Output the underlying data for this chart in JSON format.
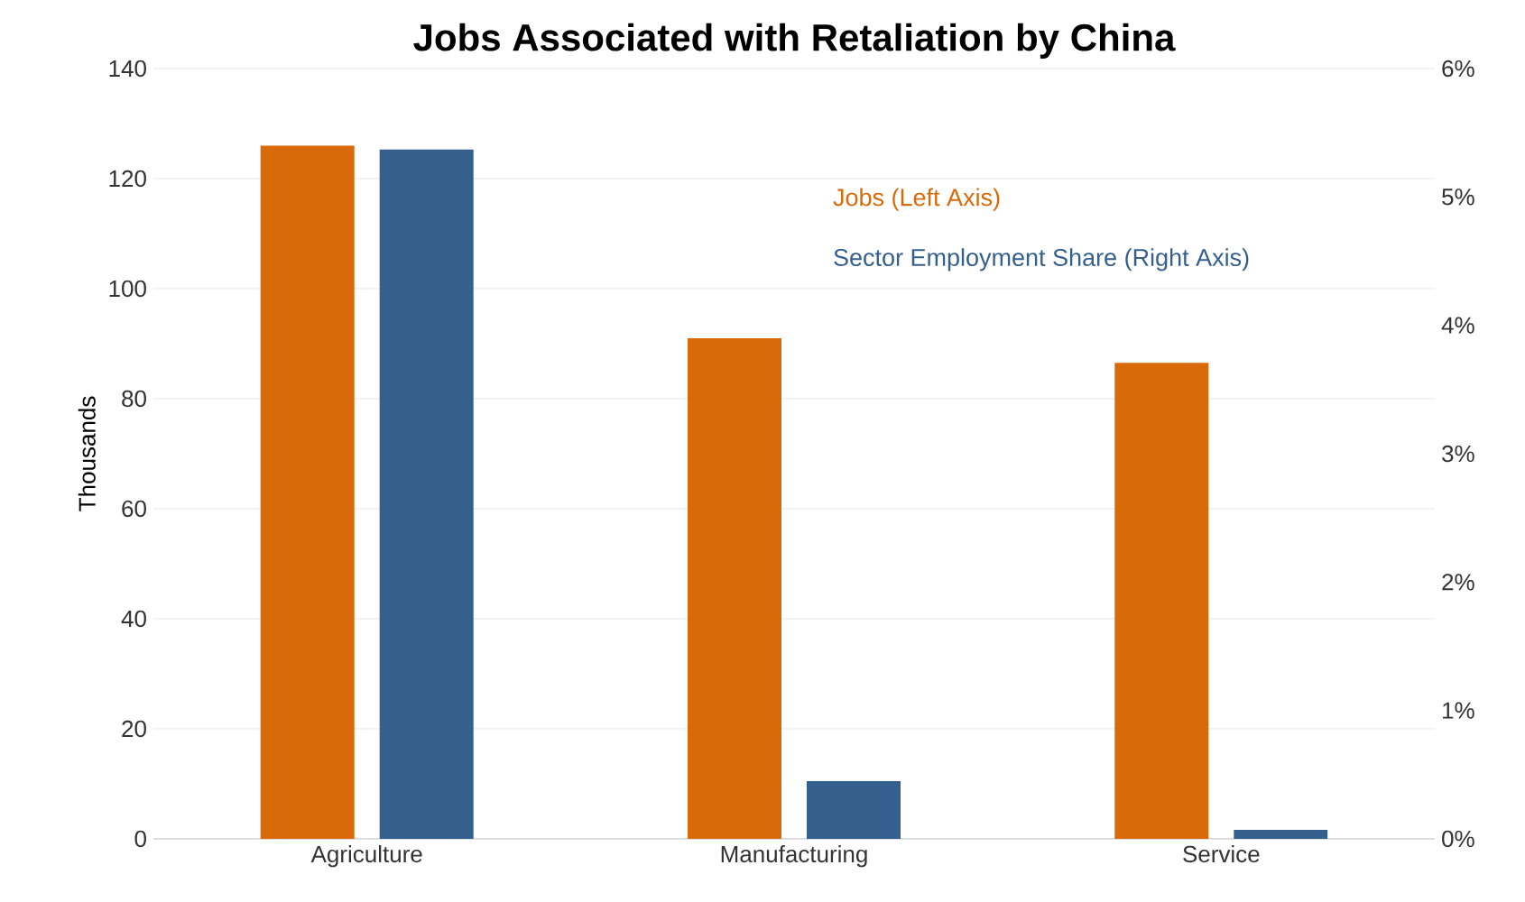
{
  "chart_data": {
    "type": "bar",
    "title": "Jobs Associated with Retaliation by China",
    "categories": [
      "Agriculture",
      "Manufacturing",
      "Service"
    ],
    "series": [
      {
        "name": "Jobs (Left Axis)",
        "color": "#d96a09",
        "values": [
          126,
          91,
          86.5
        ]
      },
      {
        "name": "Sector Employment Share (Right Axis)",
        "color": "#355f8d",
        "values": [
          5.37,
          0.45,
          0.07
        ],
        "axis": "y2"
      }
    ],
    "ylabel": "Thousands",
    "ylim": [
      0,
      140
    ],
    "yticks": [
      0,
      20,
      40,
      60,
      80,
      100,
      120,
      140
    ],
    "y2lim": [
      0,
      6
    ],
    "y2ticks": [
      {
        "value": 0,
        "label": "0%"
      },
      {
        "value": 1,
        "label": "1%"
      },
      {
        "value": 2,
        "label": "2%"
      },
      {
        "value": 3,
        "label": "3%"
      },
      {
        "value": 4,
        "label": "4%"
      },
      {
        "value": 5,
        "label": "5%"
      },
      {
        "value": 6,
        "label": "6%"
      }
    ],
    "grid": "y",
    "legend": "top right"
  }
}
